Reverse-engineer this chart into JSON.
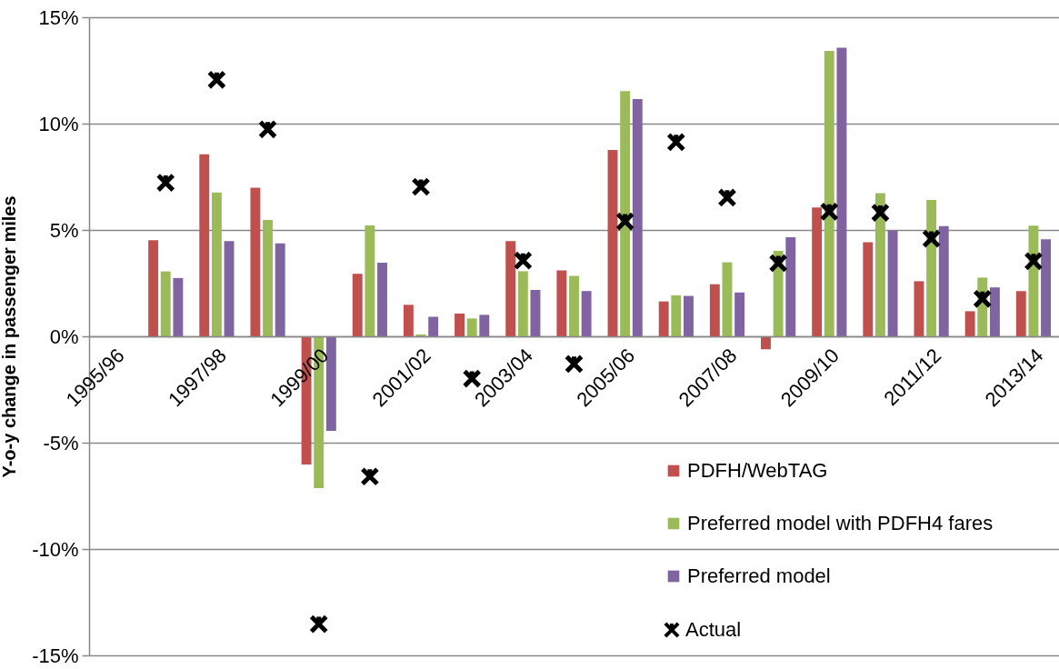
{
  "chart_data": {
    "type": "bar",
    "ylabel": "Y-o-y change in passenger miles",
    "categories": [
      "1995/96",
      null,
      "1997/98",
      null,
      "1999/00",
      null,
      "2001/02",
      null,
      "2003/04",
      null,
      "2005/06",
      null,
      "2007/08",
      null,
      "2009/10",
      null,
      "2011/12",
      null,
      "2013/14"
    ],
    "series": [
      {
        "name": "PDFH/WebTAG",
        "color": "#c0504d",
        "values": [
          null,
          4.52,
          8.56,
          6.99,
          -6.03,
          2.94,
          1.48,
          1.07,
          4.48,
          3.1,
          8.76,
          1.64,
          2.45,
          -0.61,
          6.06,
          4.42,
          2.59,
          1.18,
          2.13
        ]
      },
      {
        "name": "Preferred model with PDFH4 fares",
        "color": "#9bbb59",
        "values": [
          null,
          3.05,
          6.76,
          5.47,
          -7.14,
          5.21,
          0.09,
          0.84,
          3.06,
          2.84,
          11.53,
          1.93,
          3.48,
          4.02,
          13.42,
          6.73,
          6.41,
          2.76,
          5.2
        ]
      },
      {
        "name": "Preferred model",
        "color": "#8064a2",
        "values": [
          null,
          2.74,
          4.48,
          4.37,
          -4.44,
          3.46,
          0.92,
          1.01,
          2.18,
          2.13,
          11.15,
          1.9,
          2.06,
          4.66,
          13.57,
          4.97,
          5.18,
          2.3,
          4.56
        ]
      },
      {
        "name": "Actual",
        "type": "scatter",
        "marker": "cross",
        "color": "#000000",
        "values": [
          null,
          7.22,
          12.06,
          9.73,
          -13.53,
          -6.59,
          7.03,
          -1.99,
          3.56,
          -1.3,
          5.4,
          9.13,
          6.52,
          3.44,
          5.86,
          5.81,
          4.59,
          1.76,
          3.53
        ]
      }
    ],
    "ylim": [
      -15,
      15
    ],
    "yticks": [
      {
        "value": -15,
        "label": "-15%"
      },
      {
        "value": -10,
        "label": "-10%"
      },
      {
        "value": -5,
        "label": "-5%"
      },
      {
        "value": 0,
        "label": "0%"
      },
      {
        "value": 5,
        "label": "5%"
      },
      {
        "value": 10,
        "label": "10%"
      },
      {
        "value": 15,
        "label": "15%"
      }
    ],
    "grid": "y",
    "legend": "bottom right"
  }
}
